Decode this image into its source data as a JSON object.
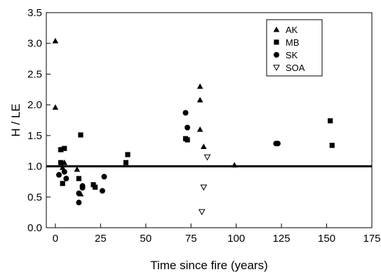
{
  "chart_data": {
    "type": "scatter",
    "xlabel": "Time since fire (years)",
    "ylabel": "H / LE",
    "xlim": [
      -5,
      175
    ],
    "ylim": [
      0,
      3.5
    ],
    "xticks": [
      0,
      25,
      50,
      75,
      100,
      125,
      150,
      175
    ],
    "yticks": [
      0.0,
      0.5,
      1.0,
      1.5,
      2.0,
      2.5,
      3.0,
      3.5
    ],
    "xtick_labels": [
      "0",
      "25",
      "50",
      "75",
      "100",
      "125",
      "150",
      "175"
    ],
    "ytick_labels": [
      "0.0",
      "0.5",
      "1.0",
      "1.5",
      "2.0",
      "2.5",
      "3.0",
      "3.5"
    ],
    "reference_line": {
      "y": 1.0
    },
    "grid": false,
    "legend_position": "top-right",
    "series": [
      {
        "name": "AK",
        "marker": "triangle",
        "points": [
          [
            0,
            3.04
          ],
          [
            0,
            1.96
          ],
          [
            3,
            1.27
          ],
          [
            5,
            1.06
          ],
          [
            4,
            0.98
          ],
          [
            12,
            0.95
          ],
          [
            14,
            0.55
          ],
          [
            80,
            2.3
          ],
          [
            80,
            2.08
          ],
          [
            80,
            1.6
          ],
          [
            82,
            1.32
          ],
          [
            99,
            1.02
          ]
        ]
      },
      {
        "name": "MB",
        "marker": "square",
        "points": [
          [
            3,
            1.27
          ],
          [
            5,
            1.29
          ],
          [
            3,
            1.06
          ],
          [
            4,
            0.72
          ],
          [
            13,
            0.8
          ],
          [
            14,
            1.51
          ],
          [
            21,
            0.7
          ],
          [
            22,
            0.66
          ],
          [
            39,
            1.06
          ],
          [
            40,
            1.19
          ],
          [
            72,
            1.45
          ],
          [
            73,
            1.43
          ],
          [
            152,
            1.74
          ],
          [
            153,
            1.34
          ]
        ]
      },
      {
        "name": "SK",
        "marker": "circle",
        "points": [
          [
            2,
            0.86
          ],
          [
            5,
            0.91
          ],
          [
            6,
            0.8
          ],
          [
            13,
            0.56
          ],
          [
            13,
            0.41
          ],
          [
            15,
            0.68
          ],
          [
            15,
            0.65
          ],
          [
            26,
            0.6
          ],
          [
            27,
            0.83
          ],
          [
            72,
            1.87
          ],
          [
            73,
            1.63
          ],
          [
            122,
            1.37
          ],
          [
            123,
            1.37
          ]
        ]
      },
      {
        "name": "SOA",
        "marker": "triangle-down-open",
        "points": [
          [
            84,
            1.15
          ],
          [
            82,
            0.66
          ],
          [
            81,
            0.26
          ]
        ]
      }
    ]
  }
}
